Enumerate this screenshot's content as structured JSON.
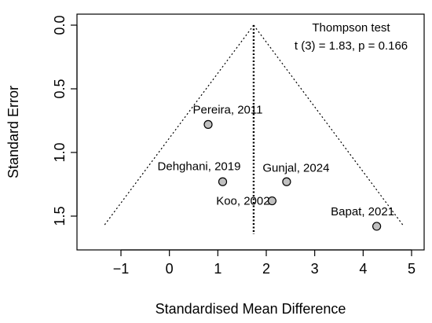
{
  "chart_data": {
    "type": "scatter",
    "title": "",
    "xlabel": "Standardised Mean Difference",
    "ylabel": "Standard Error",
    "xlim": [
      -1.6,
      5.0
    ],
    "ylim": [
      1.62,
      0.0
    ],
    "x_ticks": [
      -1,
      0,
      1,
      2,
      3,
      4,
      5
    ],
    "y_ticks": [
      0.0,
      0.5,
      1.0,
      1.5
    ],
    "x_tick_labels": [
      "−1",
      "0",
      "1",
      "2",
      "3",
      "4",
      "5"
    ],
    "y_tick_labels": [
      "0.0",
      "0.5",
      "1.0",
      "1.5"
    ],
    "grid": false,
    "points": [
      {
        "label": "Pereira, 2011",
        "x": 0.8,
        "y": 0.78
      },
      {
        "label": "Dehghani, 2019",
        "x": 1.1,
        "y": 1.23
      },
      {
        "label": "Gunjal, 2024",
        "x": 2.42,
        "y": 1.23
      },
      {
        "label": "Koo, 2002",
        "x": 2.12,
        "y": 1.38
      },
      {
        "label": "Bapat, 2021",
        "x": 4.28,
        "y": 1.58
      }
    ],
    "funnel": {
      "center": 1.74,
      "apex_se": 0.0,
      "bottom_se": 1.58,
      "left_bottom_x": -1.36,
      "right_bottom_x": 4.84
    },
    "annotation": {
      "line1": "Thompson test",
      "line2": "t (3) = 1.83, p = 0.166"
    },
    "colors": {
      "point_fill": "#c0c0c0",
      "point_stroke": "#000000",
      "lines": "#000000"
    }
  }
}
